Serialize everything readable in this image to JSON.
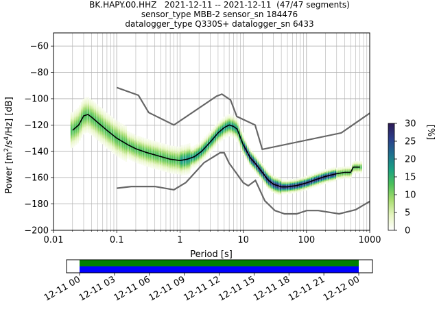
{
  "titles": [
    "BK.HAPY.00.HHZ   2021-12-11 -- 2021-12-11  (47/47 segments)",
    "sensor_type MBB-2 sensor_sn 184476",
    "datalogger_type Q330S+ datalogger_sn 6433"
  ],
  "chart_data": [
    {
      "type": "heatmap",
      "subtype": "probabilistic power spectral density",
      "xlabel": "Period [s]",
      "ylabel_parts": [
        "Power [m",
        "2",
        "/s",
        "4",
        "/Hz] [dB]"
      ],
      "xscale": "log",
      "xlim": [
        0.01,
        1000
      ],
      "ylim": [
        -200,
        -50
      ],
      "x_ticks": [
        0.01,
        0.1,
        1,
        10,
        100,
        1000
      ],
      "x_tick_labels": [
        "0.01",
        "0.1",
        "1",
        "10",
        "100",
        "1000"
      ],
      "y_ticks": [
        -200,
        -180,
        -160,
        -140,
        -120,
        -100,
        -80,
        -60
      ],
      "y_tick_labels": [
        "−200",
        "−180",
        "−160",
        "−140",
        "−120",
        "−100",
        "−80",
        "−60"
      ],
      "grid": true,
      "colorbar": {
        "label": "[%]",
        "range": [
          0,
          30
        ],
        "ticks": [
          0,
          5,
          10,
          15,
          20,
          25,
          30
        ],
        "colors": [
          "#ffffff",
          "#e6f5c0",
          "#a6dc6e",
          "#4cc05a",
          "#1aa083",
          "#1f6f8f",
          "#2b3d8a",
          "#2d1a55"
        ]
      },
      "mode_curve": {
        "name": "mode",
        "color": "#000000",
        "x": [
          0.02,
          0.025,
          0.03,
          0.035,
          0.04,
          0.05,
          0.07,
          0.1,
          0.15,
          0.2,
          0.3,
          0.5,
          0.7,
          1,
          1.3,
          1.7,
          2.2,
          3,
          4,
          5,
          6,
          7,
          8,
          10,
          13,
          16,
          20,
          25,
          30,
          40,
          50,
          70,
          100,
          150,
          200,
          300,
          400,
          500,
          550,
          600,
          700
        ],
        "y": [
          -124,
          -120,
          -113,
          -112,
          -114,
          -118,
          -124,
          -130,
          -135,
          -138,
          -141,
          -144,
          -146,
          -147,
          -146,
          -144,
          -140,
          -133,
          -126,
          -122,
          -120,
          -121,
          -123,
          -135,
          -145,
          -150,
          -156,
          -162,
          -165,
          -167,
          -167,
          -166,
          -164,
          -161,
          -159,
          -157,
          -156,
          -156,
          -152,
          -152,
          -152
        ]
      },
      "noise_models": [
        {
          "name": "NHNM",
          "color": "#666666",
          "x": [
            0.1,
            0.22,
            0.32,
            0.8,
            3.8,
            4.6,
            6.3,
            7.9,
            15.4,
            20,
            354.8,
            1000
          ],
          "y": [
            -91.5,
            -97.4,
            -110.5,
            -120,
            -98,
            -96.5,
            -101,
            -113.5,
            -120,
            -138.5,
            -126,
            -111
          ]
        },
        {
          "name": "NLNM",
          "color": "#666666",
          "x": [
            0.1,
            0.17,
            0.4,
            0.8,
            1.24,
            2.4,
            4.3,
            5,
            6,
            10,
            12,
            15.6,
            21.9,
            31.6,
            45,
            70,
            101,
            154,
            328,
            600,
            1000
          ],
          "y": [
            -168,
            -166.7,
            -166.7,
            -169.2,
            -163.7,
            -148.6,
            -141.1,
            -141.1,
            -149,
            -163.8,
            -166.2,
            -162.1,
            -177.5,
            -185,
            -187.5,
            -187.5,
            -185,
            -185,
            -187.5,
            -184.4,
            -178
          ]
        }
      ]
    },
    {
      "type": "bar",
      "subtype": "data coverage timeline",
      "x_tick_labels": [
        "12-11 00",
        "12-11 03",
        "12-11 06",
        "12-11 09",
        "12-11 12",
        "12-11 15",
        "12-11 18",
        "12-11 21",
        "12-12 00"
      ],
      "bars": [
        {
          "name": "used",
          "color": "#008000",
          "start_hour": 0,
          "end_hour": 24
        },
        {
          "name": "available",
          "color": "#0000ff",
          "start_hour": 0,
          "end_hour": 24
        }
      ]
    }
  ]
}
